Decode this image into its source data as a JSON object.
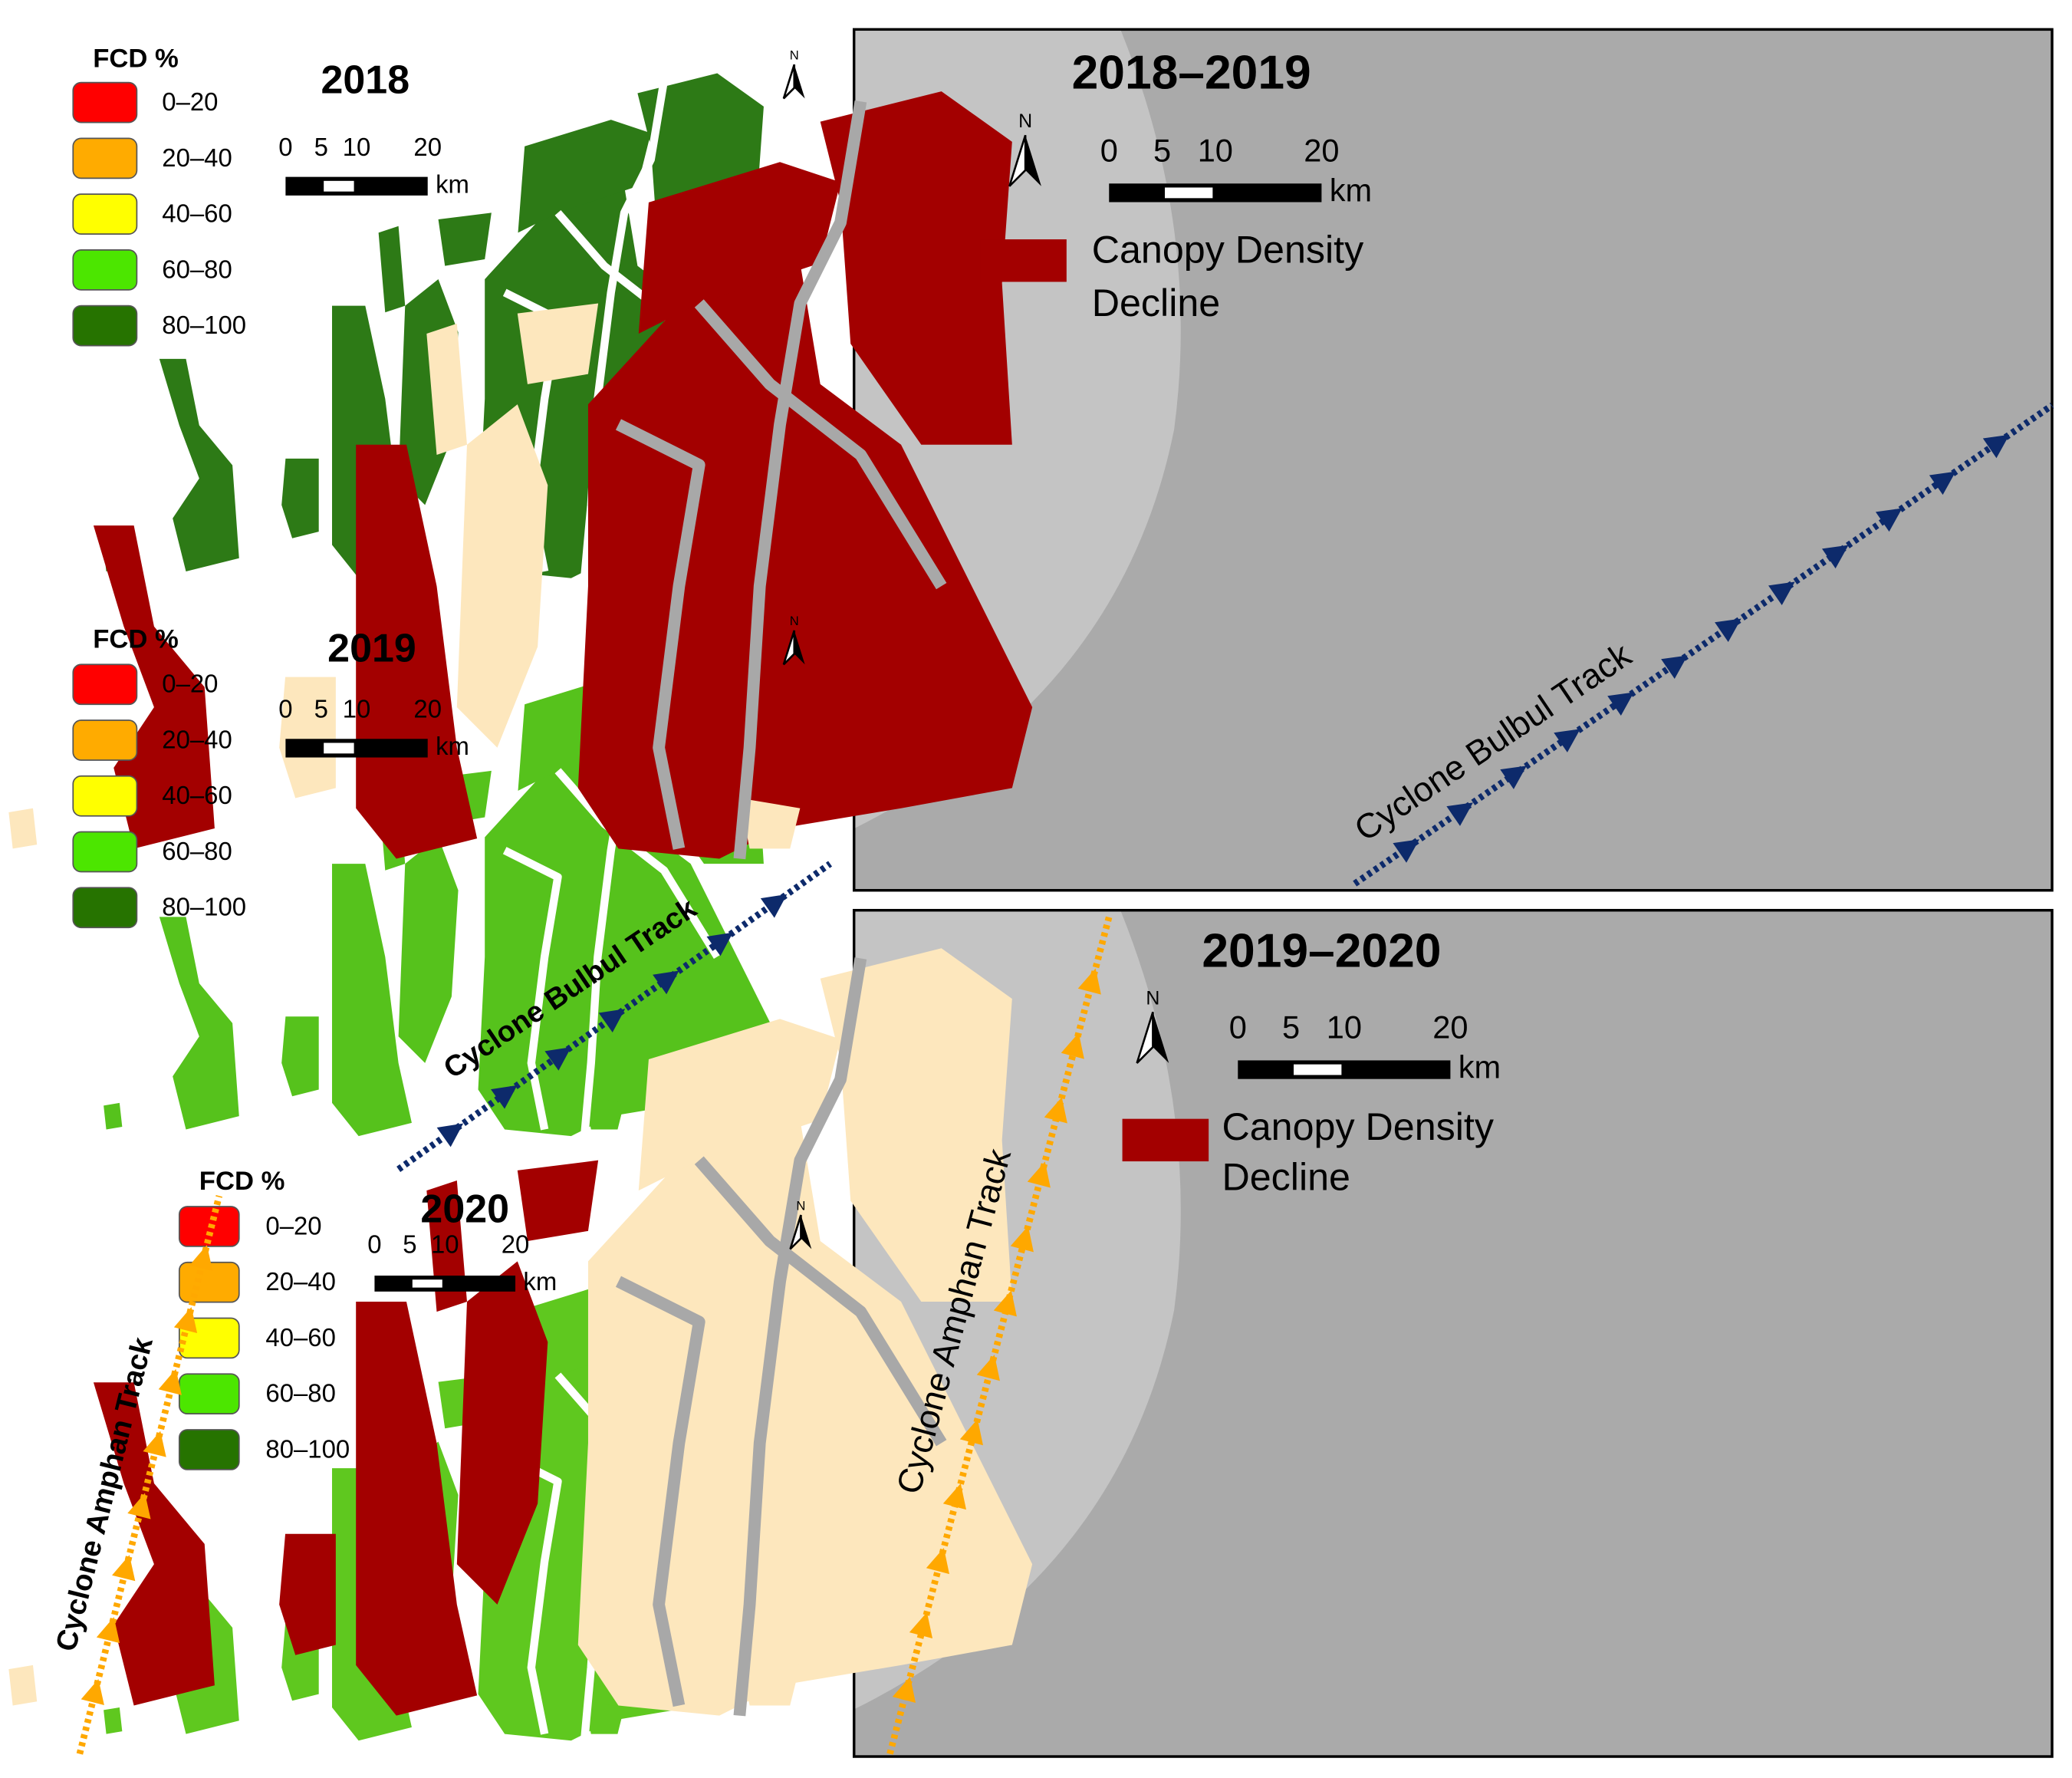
{
  "fcd_legend": {
    "title": "FCD %",
    "classes": [
      {
        "label": "0–20",
        "color": "#ff0000"
      },
      {
        "label": "20–40",
        "color": "#ffab00"
      },
      {
        "label": "40–60",
        "color": "#ffff00"
      },
      {
        "label": "60–80",
        "color": "#4ce600"
      },
      {
        "label": "80–100",
        "color": "#267300"
      }
    ]
  },
  "scale": {
    "ticks": [
      "0",
      "5",
      "10",
      "20"
    ],
    "unit": "km"
  },
  "north": "N",
  "panels": [
    {
      "title": "2018"
    },
    {
      "title": "2019"
    },
    {
      "title": "2020"
    },
    {
      "title": "2018–2019"
    },
    {
      "title": "2019–2020"
    }
  ],
  "change_legend": {
    "lines": [
      "Canopy Density",
      "Decline"
    ],
    "color": "#a30000"
  },
  "tracks": {
    "bulbul": "Cyclone Bulbul Track",
    "amphan": "Cyclone Amphan Track"
  }
}
